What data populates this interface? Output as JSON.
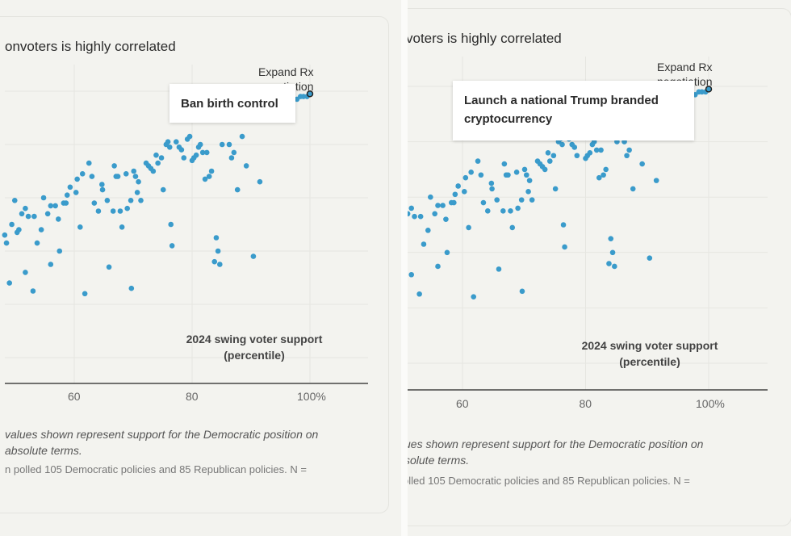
{
  "panels": [
    {
      "title_fragment": "onvoters is highly correlated",
      "tooltip": "Ban birth control",
      "annotation_line1": "Expand Rx",
      "annotation_line2": "negotiation",
      "xlabel_line1": "2024 swing voter support",
      "xlabel_line2": "(percentile)",
      "note_line1": "values shown represent support for the Democratic position on",
      "note_line2": "absolute terms.",
      "source": "n polled 105 Democratic policies and 85 Republican policies. N ="
    },
    {
      "title_fragment": "voters is highly correlated",
      "tooltip": "Launch a national Trump branded cryptocurrency",
      "annotation_line1": "Expand Rx",
      "annotation_line2": "negotiation",
      "xlabel_line1": "2024 swing voter support",
      "xlabel_line2": "(percentile)",
      "note_line1": "ues shown represent support for the Democratic position on",
      "note_line2": "solute terms.",
      "source": "olled 105 Democratic policies and 85 Republican policies. N ="
    }
  ],
  "chart_data": {
    "type": "scatter",
    "title": "...voters is highly correlated",
    "xlabel": "2024 swing voter support (percentile)",
    "ylabel": "",
    "x_ticks": [
      "60",
      "80",
      "100%"
    ],
    "x_tick_values": [
      60,
      80,
      100
    ],
    "xlim": [
      48.2,
      109.3
    ],
    "y_grid_count": 6,
    "ylim": [
      0.5,
      6.1
    ],
    "y_units": "relative (unlabeled gridlines 1-6)",
    "grid": true,
    "point_color": "#3a9bcb",
    "highlight": {
      "label": "Expand Rx negotiation",
      "x": 100,
      "y": 5.95
    },
    "points": [
      [
        48.2,
        3.3
      ],
      [
        48.5,
        3.15
      ],
      [
        49.0,
        2.4
      ],
      [
        49.4,
        3.5
      ],
      [
        49.9,
        3.95
      ],
      [
        50.3,
        3.35
      ],
      [
        50.6,
        3.4
      ],
      [
        51.1,
        3.7
      ],
      [
        51.7,
        3.8
      ],
      [
        51.7,
        2.6
      ],
      [
        52.2,
        3.65
      ],
      [
        53.0,
        2.25
      ],
      [
        53.2,
        3.65
      ],
      [
        53.7,
        3.15
      ],
      [
        54.4,
        3.4
      ],
      [
        54.8,
        4.0
      ],
      [
        55.5,
        3.7
      ],
      [
        56.0,
        3.85
      ],
      [
        56.0,
        2.75
      ],
      [
        56.8,
        3.85
      ],
      [
        57.3,
        3.6
      ],
      [
        57.5,
        3.0
      ],
      [
        58.2,
        3.9
      ],
      [
        58.6,
        3.9
      ],
      [
        58.8,
        4.05
      ],
      [
        59.3,
        4.2
      ],
      [
        60.3,
        4.1
      ],
      [
        60.5,
        4.35
      ],
      [
        61.0,
        3.45
      ],
      [
        61.4,
        4.45
      ],
      [
        61.8,
        2.2
      ],
      [
        62.5,
        4.65
      ],
      [
        63.0,
        4.4
      ],
      [
        63.4,
        3.9
      ],
      [
        64.1,
        3.75
      ],
      [
        64.7,
        4.25
      ],
      [
        64.8,
        4.15
      ],
      [
        65.6,
        3.95
      ],
      [
        65.9,
        2.7
      ],
      [
        66.6,
        3.75
      ],
      [
        66.8,
        4.6
      ],
      [
        67.1,
        4.4
      ],
      [
        67.4,
        4.4
      ],
      [
        67.8,
        3.75
      ],
      [
        68.1,
        3.45
      ],
      [
        68.8,
        4.45
      ],
      [
        69.0,
        3.8
      ],
      [
        69.6,
        3.95
      ],
      [
        69.7,
        2.3
      ],
      [
        70.1,
        4.5
      ],
      [
        70.4,
        4.4
      ],
      [
        70.7,
        4.1
      ],
      [
        70.9,
        4.3
      ],
      [
        71.3,
        3.95
      ],
      [
        72.2,
        4.65
      ],
      [
        72.6,
        4.6
      ],
      [
        73.0,
        4.55
      ],
      [
        73.4,
        4.5
      ],
      [
        73.9,
        4.8
      ],
      [
        74.2,
        4.65
      ],
      [
        74.8,
        4.75
      ],
      [
        75.1,
        4.15
      ],
      [
        75.6,
        5.0
      ],
      [
        75.9,
        5.05
      ],
      [
        76.2,
        4.95
      ],
      [
        76.4,
        3.5
      ],
      [
        76.6,
        3.1
      ],
      [
        77.3,
        5.05
      ],
      [
        77.8,
        4.95
      ],
      [
        78.2,
        4.9
      ],
      [
        78.6,
        4.75
      ],
      [
        79.2,
        5.1
      ],
      [
        79.6,
        5.15
      ],
      [
        80.0,
        4.7
      ],
      [
        80.3,
        4.75
      ],
      [
        80.7,
        4.8
      ],
      [
        81.1,
        4.95
      ],
      [
        81.4,
        5.0
      ],
      [
        81.8,
        4.85
      ],
      [
        82.2,
        4.35
      ],
      [
        82.5,
        4.85
      ],
      [
        82.9,
        4.4
      ],
      [
        83.3,
        4.5
      ],
      [
        83.8,
        2.8
      ],
      [
        84.1,
        3.25
      ],
      [
        84.4,
        3.0
      ],
      [
        84.7,
        2.75
      ],
      [
        85.1,
        5.0
      ],
      [
        86.3,
        5.0
      ],
      [
        86.7,
        4.75
      ],
      [
        87.1,
        4.85
      ],
      [
        87.7,
        4.15
      ],
      [
        88.5,
        5.15
      ],
      [
        89.2,
        4.6
      ],
      [
        90.4,
        2.9
      ],
      [
        91.5,
        4.3
      ],
      [
        97.8,
        5.85
      ],
      [
        98.4,
        5.9
      ],
      [
        98.9,
        5.9
      ],
      [
        99.5,
        5.9
      ],
      [
        100.0,
        5.95
      ]
    ]
  }
}
